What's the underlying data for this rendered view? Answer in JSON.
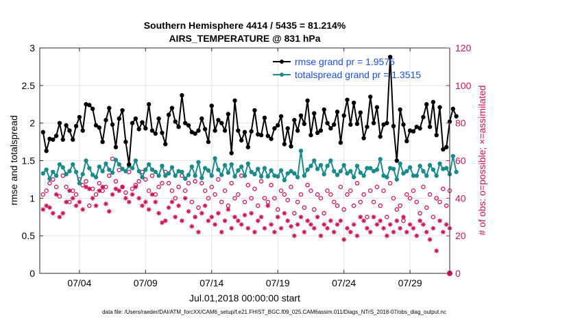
{
  "chart_data": {
    "type": "line",
    "title_line1": "Southern Hemisphere 4414 / 5435 = 81.214%",
    "title_line2": "AIRS_TEMPERATURE @ 831 hPa",
    "xlabel": "Jul.01,2018 00:00:00 start",
    "ylabel_left": "rmse and totalspread",
    "ylabel_right": "# of obs: o=possible; ×=assimilated",
    "xlim": [
      0,
      124
    ],
    "ylim_left": [
      0,
      3
    ],
    "ylim_right": [
      0,
      120
    ],
    "x_ticks": [
      12,
      32,
      52,
      72,
      92,
      112
    ],
    "x_tick_labels": [
      "07/04",
      "07/09",
      "07/14",
      "07/19",
      "07/24",
      "07/29"
    ],
    "y_ticks_left": [
      0,
      0.5,
      1,
      1.5,
      2,
      2.5,
      3
    ],
    "y_tick_labels_left": [
      "0",
      "0.5",
      "1",
      "1.5",
      "2",
      "2.5",
      "3"
    ],
    "y_ticks_right": [
      0,
      20,
      40,
      60,
      80,
      100,
      120
    ],
    "y_tick_labels_right": [
      "0",
      "20",
      "40",
      "60",
      "80",
      "100",
      "120"
    ],
    "colors": {
      "rmse": "#000000",
      "spread": "#1a8a8a",
      "obs": "#cc1155",
      "legend_text": "#1a4fd6",
      "grid": "#e3e3e3"
    },
    "series": [
      {
        "name": "rmse grand pr = 1.9575",
        "axis": "left",
        "values": [
          1.88,
          1.63,
          1.79,
          1.78,
          1.83,
          2.0,
          1.78,
          1.97,
          1.9,
          1.78,
          1.96,
          2.08,
          1.9,
          2.25,
          2.24,
          2.19,
          1.97,
          1.94,
          1.75,
          2.04,
          2.2,
          1.98,
          1.68,
          2.06,
          2.17,
          1.75,
          1.45,
          2.0,
          2.06,
          1.92,
          2.01,
          1.93,
          2.25,
          1.9,
          1.86,
          2.06,
          1.87,
          1.72,
          2.11,
          2.2,
          2.02,
          1.95,
          2.37,
          2.0,
          1.97,
          1.88,
          1.86,
          1.9,
          2.06,
          1.92,
          1.75,
          2.23,
          1.9,
          2.04,
          2.0,
          1.9,
          2.12,
          1.6,
          2.3,
          1.9,
          1.77,
          1.88,
          1.68,
          1.89,
          2.17,
          1.85,
          1.84,
          2.07,
          1.83,
          1.79,
          1.93,
          1.97,
          2.09,
          1.72,
          1.93,
          1.69,
          2.04,
          1.9,
          2.1,
          1.99,
          2.3,
          1.84,
          2.13,
          1.87,
          1.9,
          2.18,
          2.0,
          1.93,
          1.98,
          2.15,
          1.74,
          2.1,
          2.31,
          1.98,
          2.27,
          1.99,
          2.14,
          1.8,
          1.95,
          2.35,
          2.0,
          2.21,
          1.82,
          1.98,
          2.0,
          2.88,
          1.96,
          1.5,
          2.18,
          1.98,
          1.76,
          1.9,
          1.89,
          1.95,
          1.93,
          2.08,
          2.25,
          1.95,
          2.28,
          1.84,
          2.21,
          1.65,
          1.68,
          2.02,
          2.19,
          2.09
        ],
        "color": "#000000",
        "marker": "filled-circle"
      },
      {
        "name": "totalspread grand pr = 1.3515",
        "axis": "left",
        "values": [
          1.33,
          1.38,
          1.26,
          1.35,
          1.3,
          1.45,
          1.41,
          1.32,
          1.36,
          1.45,
          1.35,
          1.2,
          1.32,
          1.5,
          1.4,
          1.31,
          1.28,
          1.42,
          1.36,
          1.46,
          1.38,
          1.34,
          1.51,
          1.45,
          1.39,
          1.36,
          1.43,
          1.4,
          1.5,
          1.36,
          1.28,
          1.38,
          1.45,
          1.38,
          1.35,
          1.3,
          1.43,
          1.3,
          1.33,
          1.41,
          1.3,
          1.36,
          1.35,
          1.26,
          1.31,
          1.42,
          1.3,
          1.48,
          1.27,
          1.4,
          1.37,
          1.3,
          1.53,
          1.38,
          1.31,
          1.44,
          1.34,
          1.45,
          1.29,
          1.37,
          1.42,
          1.3,
          1.46,
          1.35,
          1.32,
          1.39,
          1.29,
          1.4,
          1.29,
          1.37,
          1.3,
          1.29,
          1.37,
          1.24,
          1.33,
          1.36,
          1.33,
          1.28,
          1.63,
          1.3,
          1.38,
          1.43,
          1.5,
          1.39,
          1.44,
          1.32,
          1.43,
          1.5,
          1.36,
          1.31,
          1.36,
          1.44,
          1.33,
          1.36,
          1.28,
          1.43,
          1.34,
          1.3,
          1.4,
          1.4,
          1.36,
          1.38,
          1.52,
          1.3,
          1.28,
          1.4,
          1.39,
          1.25,
          1.46,
          1.33,
          1.36,
          1.41,
          1.3,
          1.3,
          1.43,
          1.36,
          1.3,
          1.44,
          1.38,
          1.3,
          1.46,
          1.39,
          1.4,
          1.32,
          1.56,
          1.35
        ],
        "color": "#1a8a8a",
        "marker": "filled-circle"
      },
      {
        "name": "possible",
        "axis": "right",
        "marker": "open-circle",
        "values": [
          42,
          44,
          48,
          50,
          46,
          41,
          52,
          46,
          38,
          44,
          42,
          50,
          47,
          49,
          36,
          45,
          42,
          48,
          44,
          46,
          52,
          61,
          49,
          55,
          46,
          43,
          54,
          45,
          47,
          49,
          54,
          50,
          44,
          52,
          42,
          46,
          48,
          54,
          48,
          44,
          40,
          46,
          52,
          44,
          48,
          38,
          49,
          35,
          48,
          44,
          40,
          46,
          42,
          50,
          38,
          44,
          36,
          48,
          40,
          42,
          52,
          38,
          47,
          40,
          45,
          36,
          49,
          40,
          38,
          47,
          40,
          34,
          44,
          42,
          39,
          46,
          32,
          38,
          42,
          35,
          47,
          44,
          34,
          42,
          40,
          32,
          44,
          42,
          38,
          36,
          46,
          34,
          42,
          44,
          36,
          48,
          38,
          42,
          30,
          44,
          38,
          46,
          36,
          44,
          30,
          48,
          40,
          34,
          36,
          28,
          42,
          40,
          44,
          38,
          32,
          46,
          35,
          42,
          30,
          40,
          38,
          45,
          36,
          44
        ]
      },
      {
        "name": "assimilated",
        "axis": "right",
        "marker": "asterisk",
        "values": [
          34,
          36,
          35,
          32,
          42,
          30,
          32,
          38,
          44,
          40,
          36,
          38,
          34,
          46,
          45,
          40,
          36,
          44,
          46,
          37,
          33,
          42,
          45,
          44,
          46,
          40,
          38,
          42,
          46,
          40,
          36,
          38,
          34,
          42,
          38,
          32,
          27,
          28,
          35,
          38,
          30,
          36,
          28,
          40,
          33,
          25,
          30,
          22,
          32,
          36,
          28,
          30,
          26,
          32,
          22,
          28,
          34,
          24,
          30,
          28,
          26,
          31,
          24,
          32,
          22,
          28,
          30,
          24,
          36,
          26,
          22,
          30,
          24,
          32,
          28,
          25,
          20,
          26,
          30,
          22,
          28,
          26,
          24,
          30,
          20,
          26,
          24,
          28,
          22,
          26,
          28,
          18,
          24,
          22,
          26,
          20,
          30,
          28,
          24,
          22,
          30,
          26,
          28,
          24,
          20,
          26,
          22,
          28,
          24,
          30,
          22,
          26,
          24,
          20,
          28,
          26,
          22,
          18,
          24,
          12,
          28,
          22,
          26,
          24
        ]
      }
    ],
    "legend": [
      {
        "label": "rmse grand pr = 1.9575",
        "color": "#000000"
      },
      {
        "label": "totalspread grand pr = 1.3515",
        "color": "#1a8a8a"
      }
    ],
    "legend_position": "top-right",
    "grid": true,
    "footnote": "data file: /Users/raeder/DAI/ATM_forcXX/CAM6_setup/f.e21.FHIST_BGC.f09_025.CAM6assim.011/Diags_NTrS_2018-07/obs_diag_output.nc"
  }
}
